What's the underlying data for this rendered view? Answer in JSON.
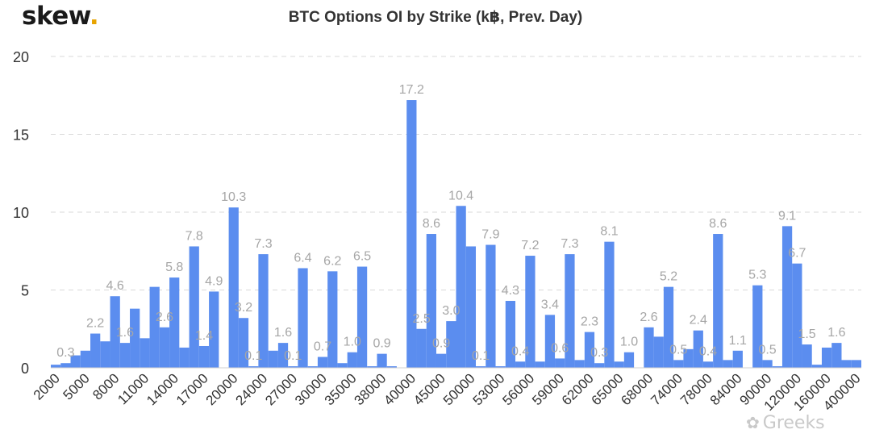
{
  "brand": {
    "name": "skew",
    "dot": "."
  },
  "watermark": {
    "icon": "wechat-icon",
    "text": "Greeks"
  },
  "chart_data": {
    "type": "bar",
    "title": "BTC Options OI by Strike (k฿, Prev. Day)",
    "xlabel": "",
    "ylabel": "",
    "ylim": [
      0,
      20
    ],
    "yticks": [
      0,
      5,
      10,
      15,
      20
    ],
    "grid": "horizontal dashed",
    "legend": "none",
    "bar_color": "#5b8def",
    "label_color": "#a6a6a6",
    "tick_labels": [
      "2000",
      "5000",
      "8000",
      "11000",
      "14000",
      "17000",
      "20000",
      "24000",
      "27000",
      "30000",
      "35000",
      "38000",
      "40000",
      "45000",
      "50000",
      "53000",
      "56000",
      "59000",
      "62000",
      "65000",
      "68000",
      "74000",
      "78000",
      "84000",
      "90000",
      "120000",
      "160000",
      "400000"
    ],
    "tick_every": 3,
    "values": [
      0.2,
      0.3,
      0.8,
      1.1,
      2.2,
      1.7,
      4.6,
      1.6,
      3.8,
      1.9,
      5.2,
      2.6,
      5.8,
      1.3,
      7.8,
      1.4,
      4.9,
      0.0,
      10.3,
      3.2,
      0.1,
      7.3,
      1.1,
      1.6,
      0.1,
      6.4,
      0.1,
      0.7,
      6.2,
      0.3,
      1.0,
      6.5,
      0.1,
      0.9,
      0.1,
      0.0,
      17.2,
      2.5,
      8.6,
      0.9,
      3.0,
      10.4,
      7.8,
      0.1,
      7.9,
      0.1,
      4.3,
      0.4,
      7.2,
      0.4,
      3.4,
      0.6,
      7.3,
      0.5,
      2.3,
      0.3,
      8.1,
      0.4,
      1.0,
      0.0,
      2.6,
      2.0,
      5.2,
      0.5,
      1.2,
      2.4,
      0.4,
      8.6,
      0.5,
      1.1,
      0.0,
      5.3,
      0.5,
      0.1,
      9.1,
      6.7,
      1.5,
      0.2,
      1.3,
      1.6,
      0.5,
      0.5
    ],
    "data_labels": [
      {
        "index": 1,
        "text": "0.3"
      },
      {
        "index": 4,
        "text": "2.2"
      },
      {
        "index": 6,
        "text": "4.6"
      },
      {
        "index": 7,
        "text": "1.6"
      },
      {
        "index": 11,
        "text": "2.6"
      },
      {
        "index": 12,
        "text": "5.8"
      },
      {
        "index": 14,
        "text": "7.8"
      },
      {
        "index": 15,
        "text": "1.4"
      },
      {
        "index": 16,
        "text": "4.9"
      },
      {
        "index": 18,
        "text": "10.3"
      },
      {
        "index": 19,
        "text": "3.2"
      },
      {
        "index": 20,
        "text": "0.1"
      },
      {
        "index": 21,
        "text": "7.3"
      },
      {
        "index": 23,
        "text": "1.6"
      },
      {
        "index": 24,
        "text": "0.1"
      },
      {
        "index": 25,
        "text": "6.4"
      },
      {
        "index": 27,
        "text": "0.7"
      },
      {
        "index": 28,
        "text": "6.2"
      },
      {
        "index": 30,
        "text": "1.0"
      },
      {
        "index": 31,
        "text": "6.5"
      },
      {
        "index": 33,
        "text": "0.9"
      },
      {
        "index": 36,
        "text": "17.2"
      },
      {
        "index": 37,
        "text": "2.5"
      },
      {
        "index": 38,
        "text": "8.6"
      },
      {
        "index": 39,
        "text": "0.9"
      },
      {
        "index": 40,
        "text": "3.0"
      },
      {
        "index": 41,
        "text": "10.4"
      },
      {
        "index": 43,
        "text": "0.1"
      },
      {
        "index": 44,
        "text": "7.9"
      },
      {
        "index": 46,
        "text": "4.3"
      },
      {
        "index": 47,
        "text": "0.4"
      },
      {
        "index": 48,
        "text": "7.2"
      },
      {
        "index": 50,
        "text": "3.4"
      },
      {
        "index": 51,
        "text": "0.6"
      },
      {
        "index": 52,
        "text": "7.3"
      },
      {
        "index": 54,
        "text": "2.3"
      },
      {
        "index": 55,
        "text": "0.3"
      },
      {
        "index": 56,
        "text": "8.1"
      },
      {
        "index": 58,
        "text": "1.0"
      },
      {
        "index": 60,
        "text": "2.6"
      },
      {
        "index": 62,
        "text": "5.2"
      },
      {
        "index": 63,
        "text": "0.5"
      },
      {
        "index": 65,
        "text": "2.4"
      },
      {
        "index": 66,
        "text": "0.4"
      },
      {
        "index": 67,
        "text": "8.6"
      },
      {
        "index": 69,
        "text": "1.1"
      },
      {
        "index": 71,
        "text": "5.3"
      },
      {
        "index": 72,
        "text": "0.5"
      },
      {
        "index": 74,
        "text": "9.1"
      },
      {
        "index": 75,
        "text": "6.7"
      },
      {
        "index": 76,
        "text": "1.5"
      },
      {
        "index": 79,
        "text": "1.6"
      }
    ]
  }
}
